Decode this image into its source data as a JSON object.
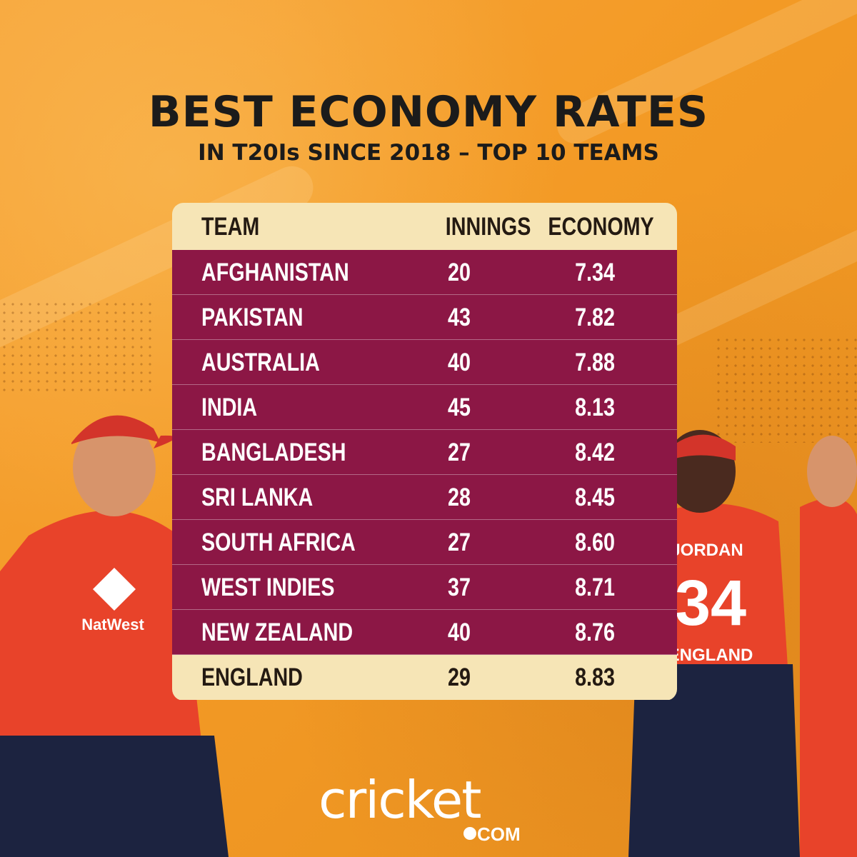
{
  "title": "BEST ECONOMY RATES",
  "subtitle": "IN T20Is SINCE 2018 – TOP 10 TEAMS",
  "table": {
    "headers": [
      "TEAM",
      "INNINGS",
      "ECONOMY"
    ],
    "rows": [
      {
        "team": "AFGHANISTAN",
        "innings": "20",
        "economy": "7.34"
      },
      {
        "team": "PAKISTAN",
        "innings": "43",
        "economy": "7.82"
      },
      {
        "team": "AUSTRALIA",
        "innings": "40",
        "economy": "7.88"
      },
      {
        "team": "INDIA",
        "innings": "45",
        "economy": "8.13"
      },
      {
        "team": "BANGLADESH",
        "innings": "27",
        "economy": "8.42"
      },
      {
        "team": "SRI LANKA",
        "innings": "28",
        "economy": "8.45"
      },
      {
        "team": "SOUTH AFRICA",
        "innings": "27",
        "economy": "8.60"
      },
      {
        "team": "WEST INDIES",
        "innings": "37",
        "economy": "8.71"
      },
      {
        "team": "NEW ZEALAND",
        "innings": "40",
        "economy": "8.76"
      },
      {
        "team": "ENGLAND",
        "innings": "29",
        "economy": "8.83"
      }
    ],
    "highlighted_team": "ENGLAND"
  },
  "players": {
    "left_shirt_sponsor": "NatWest",
    "right_shirt_name": "JORDAN",
    "right_shirt_number": "34",
    "right_shirt_team": "ENGLAND"
  },
  "logo": {
    "text": "cricket",
    "suffix": "COM"
  },
  "colors": {
    "background": "#f39a25",
    "header_row": "#f6e5b6",
    "body_row": "#8c1745",
    "highlight_row": "#f6e5b6",
    "kit_red": "#e8432a",
    "kit_navy": "#1c2340"
  }
}
